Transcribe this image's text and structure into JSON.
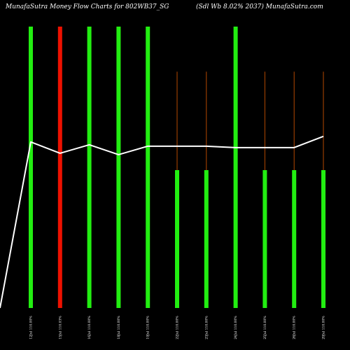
{
  "header": {
    "title_left": "MunafaSutra  Money Flow  Charts for 802WB37_SG",
    "title_right": "(Sdl Wb 8.02% 2037) MunafaSutra.com"
  },
  "colors": {
    "background": "#000000",
    "up_bar": "#22ee11",
    "down_bar": "#ee1100",
    "wick": "#b34700",
    "line": "#ffffff"
  },
  "chart_data": {
    "type": "bar",
    "title": "MunafaSutra  Money Flow  Charts for 802WB37_SG",
    "subtitle": "(Sdl Wb 8.02% 2037) MunafaSutra.com",
    "categories": [
      "12Jul 110.00%",
      "15Jul 110.03%",
      "16Jul 110.00%",
      "18Jul 110.00%",
      "19Jul 110.00%",
      "22Jul 110.00%",
      "23Jul 110.00%",
      "24Jul 110.00%",
      "25Jul 110.00%",
      "26Jul 110.00%",
      "29Jul 110.00%"
    ],
    "series": [
      {
        "type": "bar",
        "bar_top": [
          100,
          100,
          100,
          100,
          100,
          49,
          49,
          100,
          49,
          49,
          49
        ],
        "wick_top": [
          100,
          100,
          100,
          100,
          100,
          84,
          84,
          100,
          84,
          84,
          84
        ],
        "direction": [
          "up",
          "down",
          "up",
          "up",
          "up",
          "up",
          "up",
          "up",
          "up",
          "up",
          "up"
        ]
      },
      {
        "type": "line",
        "start_value": 0,
        "values": [
          59,
          55,
          58,
          54.5,
          57.5,
          57.5,
          57.5,
          57,
          57,
          57,
          61
        ]
      }
    ],
    "ylim": [
      0,
      100
    ],
    "grid": false,
    "legend": "none"
  }
}
